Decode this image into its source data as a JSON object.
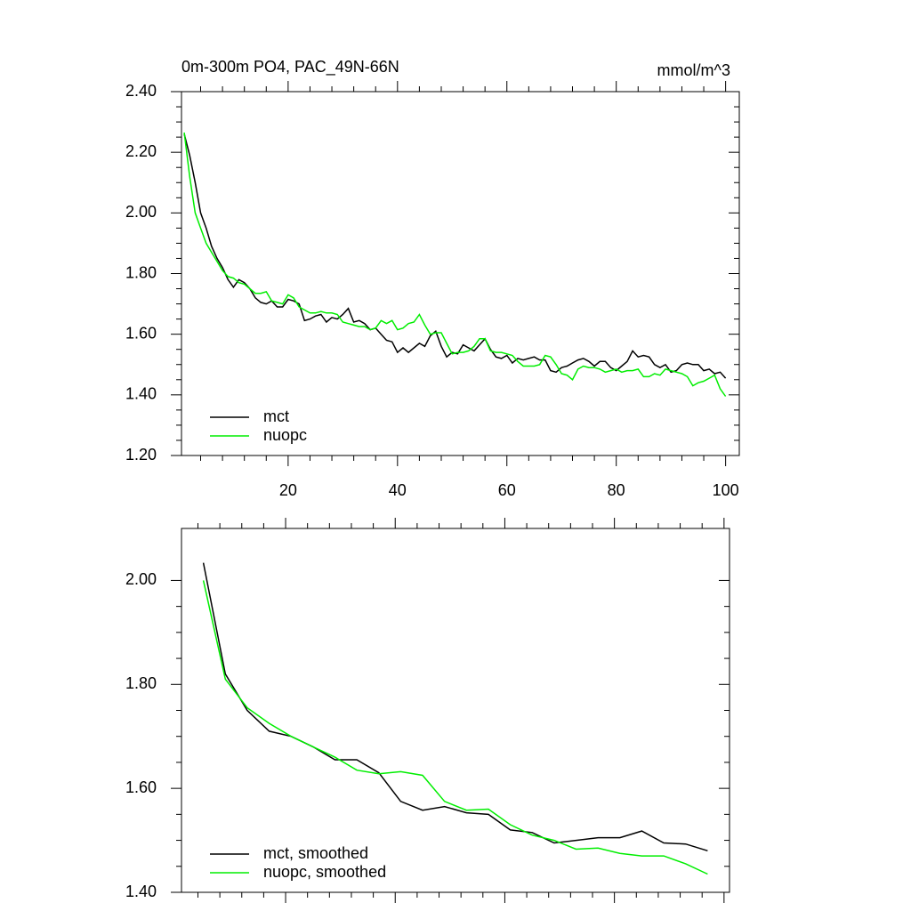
{
  "chart_data": [
    {
      "type": "line",
      "title": "0m-300m PO4, PAC_49N-66N",
      "units": "mmol/m^3",
      "x": [
        1,
        2,
        3,
        4,
        5,
        6,
        7,
        8,
        9,
        10,
        11,
        12,
        13,
        14,
        15,
        16,
        17,
        18,
        19,
        20,
        21,
        22,
        23,
        24,
        25,
        26,
        27,
        28,
        29,
        30,
        31,
        32,
        33,
        34,
        35,
        36,
        37,
        38,
        39,
        40,
        41,
        42,
        43,
        44,
        45,
        46,
        47,
        48,
        49,
        50,
        51,
        52,
        53,
        54,
        55,
        56,
        57,
        58,
        59,
        60,
        61,
        62,
        63,
        64,
        65,
        66,
        67,
        68,
        69,
        70,
        71,
        72,
        73,
        74,
        75,
        76,
        77,
        78,
        79,
        80,
        81,
        82,
        83,
        84,
        85,
        86,
        87,
        88,
        89,
        90,
        91,
        92,
        93,
        94,
        95,
        96,
        97,
        98,
        99,
        100
      ],
      "series": [
        {
          "name": "mct",
          "color": "#000000",
          "values": [
            2.26,
            2.19,
            2.1,
            2.0,
            1.95,
            1.89,
            1.85,
            1.82,
            1.78,
            1.755,
            1.78,
            1.77,
            1.75,
            1.72,
            1.705,
            1.7,
            1.71,
            1.69,
            1.69,
            1.715,
            1.71,
            1.7,
            1.645,
            1.65,
            1.66,
            1.665,
            1.64,
            1.655,
            1.65,
            1.665,
            1.685,
            1.64,
            1.645,
            1.635,
            1.615,
            1.62,
            1.6,
            1.58,
            1.575,
            1.54,
            1.555,
            1.54,
            1.555,
            1.57,
            1.56,
            1.595,
            1.61,
            1.56,
            1.525,
            1.54,
            1.535,
            1.565,
            1.555,
            1.545,
            1.565,
            1.585,
            1.55,
            1.525,
            1.52,
            1.53,
            1.505,
            1.52,
            1.515,
            1.52,
            1.525,
            1.515,
            1.515,
            1.48,
            1.475,
            1.49,
            1.495,
            1.505,
            1.515,
            1.52,
            1.51,
            1.495,
            1.51,
            1.51,
            1.49,
            1.48,
            1.495,
            1.51,
            1.545,
            1.525,
            1.53,
            1.525,
            1.5,
            1.49,
            1.5,
            1.475,
            1.48,
            1.5,
            1.505,
            1.5,
            1.5,
            1.48,
            1.485,
            1.47,
            1.475,
            1.455
          ]
        },
        {
          "name": "nuopc",
          "color": "#00ee00",
          "values": [
            2.265,
            2.12,
            2.0,
            1.95,
            1.9,
            1.87,
            1.84,
            1.81,
            1.79,
            1.785,
            1.77,
            1.765,
            1.75,
            1.735,
            1.735,
            1.74,
            1.71,
            1.705,
            1.7,
            1.73,
            1.72,
            1.69,
            1.68,
            1.67,
            1.67,
            1.675,
            1.67,
            1.67,
            1.665,
            1.64,
            1.635,
            1.63,
            1.625,
            1.625,
            1.615,
            1.62,
            1.645,
            1.635,
            1.645,
            1.615,
            1.62,
            1.635,
            1.64,
            1.665,
            1.63,
            1.6,
            1.605,
            1.605,
            1.57,
            1.535,
            1.54,
            1.54,
            1.545,
            1.56,
            1.585,
            1.585,
            1.545,
            1.54,
            1.54,
            1.535,
            1.53,
            1.51,
            1.495,
            1.495,
            1.495,
            1.5,
            1.53,
            1.525,
            1.5,
            1.47,
            1.465,
            1.45,
            1.485,
            1.495,
            1.49,
            1.49,
            1.485,
            1.475,
            1.48,
            1.485,
            1.475,
            1.48,
            1.48,
            1.485,
            1.46,
            1.46,
            1.47,
            1.465,
            1.485,
            1.48,
            1.475,
            1.47,
            1.46,
            1.43,
            1.44,
            1.445,
            1.455,
            1.465,
            1.42,
            1.395
          ]
        }
      ],
      "xlim": [
        0.5,
        102.5
      ],
      "xticks": [
        20,
        40,
        60,
        80,
        100
      ],
      "ylim": [
        1.2,
        2.4
      ],
      "yticks": [
        {
          "value": 1.2,
          "label": "1.20"
        },
        {
          "value": 1.4,
          "label": "1.40"
        },
        {
          "value": 1.6,
          "label": "1.60"
        },
        {
          "value": 1.8,
          "label": "1.80"
        },
        {
          "value": 2.0,
          "label": "2.00"
        },
        {
          "value": 2.2,
          "label": "2.20"
        },
        {
          "value": 2.4,
          "label": "2.40"
        }
      ],
      "legend": "lower left"
    },
    {
      "type": "line",
      "x": [
        5,
        9,
        13,
        17,
        21,
        25,
        29,
        33,
        37,
        41,
        45,
        49,
        53,
        57,
        61,
        65,
        69,
        73,
        77,
        81,
        85,
        89,
        93,
        97
      ],
      "series": [
        {
          "name": "mct, smoothed",
          "color": "#000000",
          "values": [
            2.034,
            1.82,
            1.75,
            1.71,
            1.7,
            1.68,
            1.655,
            1.655,
            1.63,
            1.575,
            1.558,
            1.565,
            1.553,
            1.55,
            1.52,
            1.515,
            1.495,
            1.5,
            1.505,
            1.505,
            1.518,
            1.495,
            1.493,
            1.48
          ]
        },
        {
          "name": "nuopc, smoothed",
          "color": "#00ee00",
          "values": [
            2.0,
            1.81,
            1.755,
            1.725,
            1.7,
            1.68,
            1.66,
            1.635,
            1.628,
            1.632,
            1.625,
            1.575,
            1.558,
            1.56,
            1.53,
            1.51,
            1.5,
            1.483,
            1.485,
            1.475,
            1.47,
            1.47,
            1.455,
            1.435
          ]
        }
      ],
      "xlim": [
        1,
        101
      ],
      "xticks": [
        20,
        40,
        60,
        80,
        100
      ],
      "ylim": [
        1.4,
        2.1
      ],
      "yticks": [
        {
          "value": 1.4,
          "label": "1.40"
        },
        {
          "value": 1.6,
          "label": "1.60"
        },
        {
          "value": 1.8,
          "label": "1.80"
        },
        {
          "value": 2.0,
          "label": "2.00"
        }
      ],
      "legend": "lower left"
    }
  ]
}
